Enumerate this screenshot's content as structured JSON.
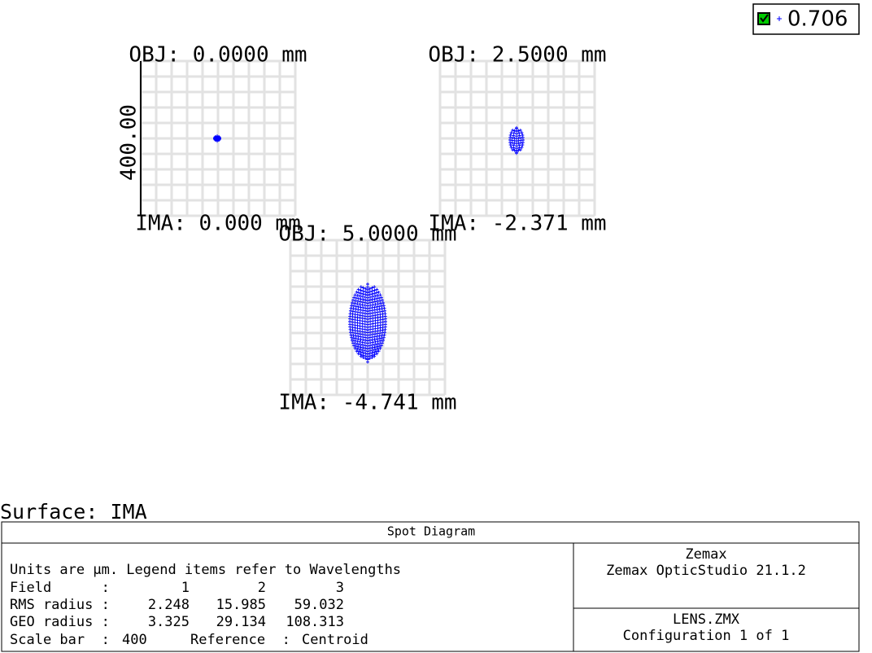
{
  "legend": {
    "value": "0.706"
  },
  "panels": [
    {
      "title": "OBJ: 0.0000 mm",
      "footer": "IMA: 0.000 mm",
      "scale_label": "400.00"
    },
    {
      "title": "OBJ: 2.5000 mm",
      "footer": "IMA: -2.371 mm"
    },
    {
      "title": "OBJ: 5.0000 mm",
      "footer": "IMA: -4.741 mm"
    }
  ],
  "surface": "Surface: IMA",
  "info": {
    "title": "Spot Diagram",
    "units_note": "Units are µm. Legend items refer to Wavelengths",
    "rows": [
      {
        "label": "Field      :",
        "values": [
          "1",
          "2",
          "3"
        ]
      },
      {
        "label": "RMS radius :",
        "values": [
          "2.248",
          "15.985",
          "59.032"
        ]
      },
      {
        "label": "GEO radius :",
        "values": [
          "3.325",
          "29.134",
          "108.313"
        ]
      }
    ],
    "scale": {
      "label": "Scale bar  :",
      "value": "400",
      "reference_label": "Reference  :",
      "reference_value": "Centroid"
    }
  },
  "software": {
    "vendor": "Zemax",
    "product": "Zemax OpticStudio 21.1.2"
  },
  "file": {
    "name": "LENS.ZMX",
    "configuration": "Configuration 1 of 1"
  }
}
